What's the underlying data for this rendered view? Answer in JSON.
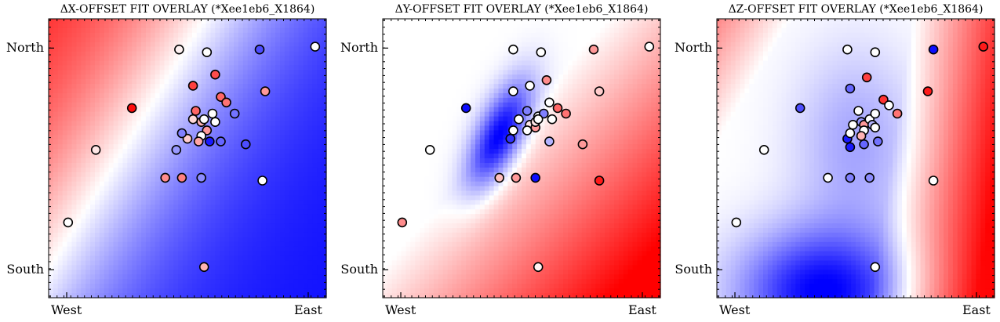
{
  "colors": {
    "low": "#0000ff",
    "mid": "#ffffff",
    "high": "#ff0000",
    "edge": "#000000"
  },
  "chart_data": [
    {
      "type": "scatter",
      "title": "ΔX-OFFSET FIT OVERLAY (*Xee1eb6_X1864)",
      "x_ticks": [
        "West",
        "East"
      ],
      "y_ticks": [
        "North",
        "South"
      ],
      "background_field": {
        "kind": "diverging",
        "low_color": "blue",
        "high_color": "red",
        "trend": "red toward north-west, blue toward east"
      },
      "points": [
        {
          "x": 0.07,
          "y": 0.27,
          "v": 0.0
        },
        {
          "x": 0.17,
          "y": 0.53,
          "v": 0.1
        },
        {
          "x": 0.3,
          "y": 0.68,
          "v": 0.95
        },
        {
          "x": 0.47,
          "y": 0.89,
          "v": 0.05
        },
        {
          "x": 0.46,
          "y": 0.53,
          "v": -0.4
        },
        {
          "x": 0.52,
          "y": 0.76,
          "v": 0.75
        },
        {
          "x": 0.57,
          "y": 0.88,
          "v": 0.0
        },
        {
          "x": 0.76,
          "y": 0.89,
          "v": -0.7
        },
        {
          "x": 0.96,
          "y": 0.9,
          "v": 0.0
        },
        {
          "x": 0.5,
          "y": 0.57,
          "v": 0.2
        },
        {
          "x": 0.48,
          "y": 0.59,
          "v": -0.5
        },
        {
          "x": 0.52,
          "y": 0.64,
          "v": 0.15
        },
        {
          "x": 0.53,
          "y": 0.67,
          "v": 0.6
        },
        {
          "x": 0.55,
          "y": 0.63,
          "v": 0.3
        },
        {
          "x": 0.57,
          "y": 0.6,
          "v": 0.4
        },
        {
          "x": 0.55,
          "y": 0.58,
          "v": 0.0
        },
        {
          "x": 0.54,
          "y": 0.56,
          "v": 0.35
        },
        {
          "x": 0.59,
          "y": 0.66,
          "v": 0.0
        },
        {
          "x": 0.6,
          "y": 0.63,
          "v": 0.0
        },
        {
          "x": 0.62,
          "y": 0.72,
          "v": 0.6
        },
        {
          "x": 0.64,
          "y": 0.7,
          "v": 0.55
        },
        {
          "x": 0.56,
          "y": 0.64,
          "v": 0.0
        },
        {
          "x": 0.58,
          "y": 0.56,
          "v": -0.9
        },
        {
          "x": 0.62,
          "y": 0.56,
          "v": -0.6
        },
        {
          "x": 0.67,
          "y": 0.66,
          "v": -0.55
        },
        {
          "x": 0.6,
          "y": 0.8,
          "v": 0.7
        },
        {
          "x": 0.71,
          "y": 0.55,
          "v": -0.7
        },
        {
          "x": 0.78,
          "y": 0.74,
          "v": 0.4
        },
        {
          "x": 0.42,
          "y": 0.43,
          "v": 0.45
        },
        {
          "x": 0.48,
          "y": 0.43,
          "v": 0.5
        },
        {
          "x": 0.55,
          "y": 0.43,
          "v": -0.45
        },
        {
          "x": 0.77,
          "y": 0.42,
          "v": 0.0
        },
        {
          "x": 0.56,
          "y": 0.11,
          "v": 0.3
        }
      ]
    },
    {
      "type": "scatter",
      "title": "ΔY-OFFSET FIT OVERLAY (*Xee1eb6_X1864)",
      "x_ticks": [
        "West",
        "East"
      ],
      "y_ticks": [
        "North",
        "South"
      ],
      "background_field": {
        "kind": "diverging",
        "low_color": "blue",
        "high_color": "red",
        "trend": "blue elliptical blob toward upper-left centre, red toward south-east"
      },
      "points": [
        {
          "x": 0.07,
          "y": 0.27,
          "v": 0.45
        },
        {
          "x": 0.17,
          "y": 0.53,
          "v": 0.0
        },
        {
          "x": 0.3,
          "y": 0.68,
          "v": -0.95
        },
        {
          "x": 0.47,
          "y": 0.89,
          "v": 0.0
        },
        {
          "x": 0.47,
          "y": 0.74,
          "v": 0.0
        },
        {
          "x": 0.53,
          "y": 0.76,
          "v": 0.0
        },
        {
          "x": 0.57,
          "y": 0.88,
          "v": 0.0
        },
        {
          "x": 0.76,
          "y": 0.89,
          "v": 0.4
        },
        {
          "x": 0.96,
          "y": 0.9,
          "v": 0.0
        },
        {
          "x": 0.46,
          "y": 0.57,
          "v": -0.8
        },
        {
          "x": 0.47,
          "y": 0.6,
          "v": 0.0
        },
        {
          "x": 0.49,
          "y": 0.64,
          "v": 0.0
        },
        {
          "x": 0.52,
          "y": 0.67,
          "v": -0.5
        },
        {
          "x": 0.53,
          "y": 0.62,
          "v": 0.1
        },
        {
          "x": 0.55,
          "y": 0.61,
          "v": 0.4
        },
        {
          "x": 0.55,
          "y": 0.63,
          "v": 0.1
        },
        {
          "x": 0.56,
          "y": 0.65,
          "v": 0.0
        },
        {
          "x": 0.58,
          "y": 0.66,
          "v": -0.5
        },
        {
          "x": 0.61,
          "y": 0.64,
          "v": 0.0
        },
        {
          "x": 0.6,
          "y": 0.7,
          "v": 0.0
        },
        {
          "x": 0.63,
          "y": 0.68,
          "v": 0.6
        },
        {
          "x": 0.56,
          "y": 0.64,
          "v": 0.0
        },
        {
          "x": 0.52,
          "y": 0.6,
          "v": 0.0
        },
        {
          "x": 0.6,
          "y": 0.56,
          "v": -0.3
        },
        {
          "x": 0.66,
          "y": 0.66,
          "v": 0.55
        },
        {
          "x": 0.59,
          "y": 0.78,
          "v": 0.45
        },
        {
          "x": 0.72,
          "y": 0.55,
          "v": 0.4
        },
        {
          "x": 0.78,
          "y": 0.74,
          "v": 0.2
        },
        {
          "x": 0.42,
          "y": 0.43,
          "v": 0.25
        },
        {
          "x": 0.48,
          "y": 0.43,
          "v": 0.4
        },
        {
          "x": 0.55,
          "y": 0.43,
          "v": -0.95
        },
        {
          "x": 0.78,
          "y": 0.42,
          "v": 0.9
        },
        {
          "x": 0.56,
          "y": 0.11,
          "v": 0.05
        }
      ]
    },
    {
      "type": "scatter",
      "title": "ΔZ-OFFSET FIT OVERLAY (*Xee1eb6_X1864)",
      "x_ticks": [
        "West",
        "East"
      ],
      "y_ticks": [
        "North",
        "South"
      ],
      "background_field": {
        "kind": "diverging",
        "low_color": "blue",
        "high_color": "red",
        "trend": "blue toward south-west and centre, red toward east"
      },
      "points": [
        {
          "x": 0.07,
          "y": 0.27,
          "v": 0.0
        },
        {
          "x": 0.17,
          "y": 0.53,
          "v": 0.0
        },
        {
          "x": 0.3,
          "y": 0.68,
          "v": -0.7
        },
        {
          "x": 0.47,
          "y": 0.89,
          "v": 0.0
        },
        {
          "x": 0.48,
          "y": 0.75,
          "v": -0.6
        },
        {
          "x": 0.54,
          "y": 0.79,
          "v": 0.75
        },
        {
          "x": 0.57,
          "y": 0.88,
          "v": 0.0
        },
        {
          "x": 0.78,
          "y": 0.89,
          "v": -0.95
        },
        {
          "x": 0.96,
          "y": 0.9,
          "v": 0.9
        },
        {
          "x": 0.47,
          "y": 0.57,
          "v": -0.9
        },
        {
          "x": 0.48,
          "y": 0.59,
          "v": 0.0
        },
        {
          "x": 0.49,
          "y": 0.62,
          "v": 0.0
        },
        {
          "x": 0.51,
          "y": 0.67,
          "v": 0.0
        },
        {
          "x": 0.52,
          "y": 0.63,
          "v": -0.4
        },
        {
          "x": 0.53,
          "y": 0.62,
          "v": 0.4
        },
        {
          "x": 0.53,
          "y": 0.6,
          "v": 0.0
        },
        {
          "x": 0.55,
          "y": 0.64,
          "v": 0.0
        },
        {
          "x": 0.56,
          "y": 0.62,
          "v": -0.3
        },
        {
          "x": 0.57,
          "y": 0.61,
          "v": 0.0
        },
        {
          "x": 0.57,
          "y": 0.66,
          "v": 0.0
        },
        {
          "x": 0.6,
          "y": 0.71,
          "v": 0.8
        },
        {
          "x": 0.62,
          "y": 0.69,
          "v": 0.0
        },
        {
          "x": 0.52,
          "y": 0.58,
          "v": 0.3
        },
        {
          "x": 0.53,
          "y": 0.55,
          "v": -0.6
        },
        {
          "x": 0.48,
          "y": 0.54,
          "v": -0.9
        },
        {
          "x": 0.58,
          "y": 0.56,
          "v": -0.55
        },
        {
          "x": 0.65,
          "y": 0.66,
          "v": 0.55
        },
        {
          "x": 0.76,
          "y": 0.74,
          "v": 0.9
        },
        {
          "x": 0.4,
          "y": 0.43,
          "v": 0.0
        },
        {
          "x": 0.48,
          "y": 0.43,
          "v": -0.5
        },
        {
          "x": 0.55,
          "y": 0.43,
          "v": -0.45
        },
        {
          "x": 0.78,
          "y": 0.42,
          "v": 0.0
        },
        {
          "x": 0.57,
          "y": 0.11,
          "v": 0.0
        }
      ]
    }
  ]
}
